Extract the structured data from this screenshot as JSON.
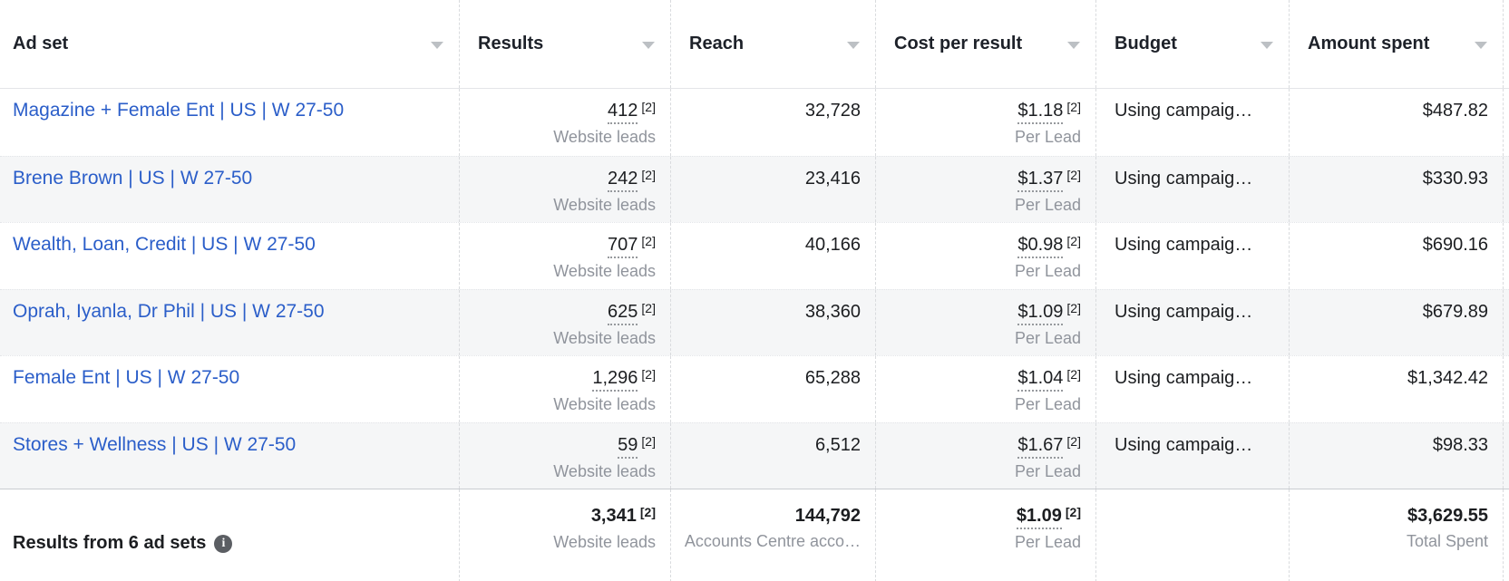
{
  "colors": {
    "link": "#2b5ec9",
    "text_primary": "#1c1e21",
    "text_secondary": "#90949c",
    "header_text": "#1d2129",
    "stripe": "#f5f6f7",
    "border_dashed": "#d9dbde",
    "sort_arrow": "#bcc0c4",
    "info_icon_bg": "#5b5e63"
  },
  "header": {
    "columns": [
      {
        "label": "Ad set"
      },
      {
        "label": "Results"
      },
      {
        "label": "Reach"
      },
      {
        "label": "Cost per result"
      },
      {
        "label": "Budget"
      },
      {
        "label": "Amount spent"
      }
    ]
  },
  "rows": [
    {
      "ad_set": "Magazine + Female Ent | US | W 27-50",
      "results": "412",
      "results_ref": "[2]",
      "results_sub": "Website leads",
      "reach": "32,728",
      "cost": "$1.18",
      "cost_ref": "[2]",
      "cost_sub": "Per Lead",
      "budget": "Using campaig…",
      "spent": "$487.82"
    },
    {
      "ad_set": "Brene Brown | US | W 27-50",
      "results": "242",
      "results_ref": "[2]",
      "results_sub": "Website leads",
      "reach": "23,416",
      "cost": "$1.37",
      "cost_ref": "[2]",
      "cost_sub": "Per Lead",
      "budget": "Using campaig…",
      "spent": "$330.93"
    },
    {
      "ad_set": "Wealth, Loan, Credit | US | W 27-50",
      "results": "707",
      "results_ref": "[2]",
      "results_sub": "Website leads",
      "reach": "40,166",
      "cost": "$0.98",
      "cost_ref": "[2]",
      "cost_sub": "Per Lead",
      "budget": "Using campaig…",
      "spent": "$690.16"
    },
    {
      "ad_set": "Oprah, Iyanla, Dr Phil | US | W 27-50",
      "results": "625",
      "results_ref": "[2]",
      "results_sub": "Website leads",
      "reach": "38,360",
      "cost": "$1.09",
      "cost_ref": "[2]",
      "cost_sub": "Per Lead",
      "budget": "Using campaig…",
      "spent": "$679.89"
    },
    {
      "ad_set": "Female Ent | US | W 27-50",
      "results": "1,296",
      "results_ref": "[2]",
      "results_sub": "Website leads",
      "reach": "65,288",
      "cost": "$1.04",
      "cost_ref": "[2]",
      "cost_sub": "Per Lead",
      "budget": "Using campaig…",
      "spent": "$1,342.42"
    },
    {
      "ad_set": "Stores + Wellness | US | W 27-50",
      "results": "59",
      "results_ref": "[2]",
      "results_sub": "Website leads",
      "reach": "6,512",
      "cost": "$1.67",
      "cost_ref": "[2]",
      "cost_sub": "Per Lead",
      "budget": "Using campaig…",
      "spent": "$98.33"
    }
  ],
  "footer": {
    "label": "Results from 6 ad sets",
    "results": "3,341",
    "results_ref": "[2]",
    "results_sub": "Website leads",
    "reach": "144,792",
    "reach_sub": "Accounts Centre acco…",
    "cost": "$1.09",
    "cost_ref": "[2]",
    "cost_sub": "Per Lead",
    "spent": "$3,629.55",
    "spent_sub": "Total Spent"
  }
}
